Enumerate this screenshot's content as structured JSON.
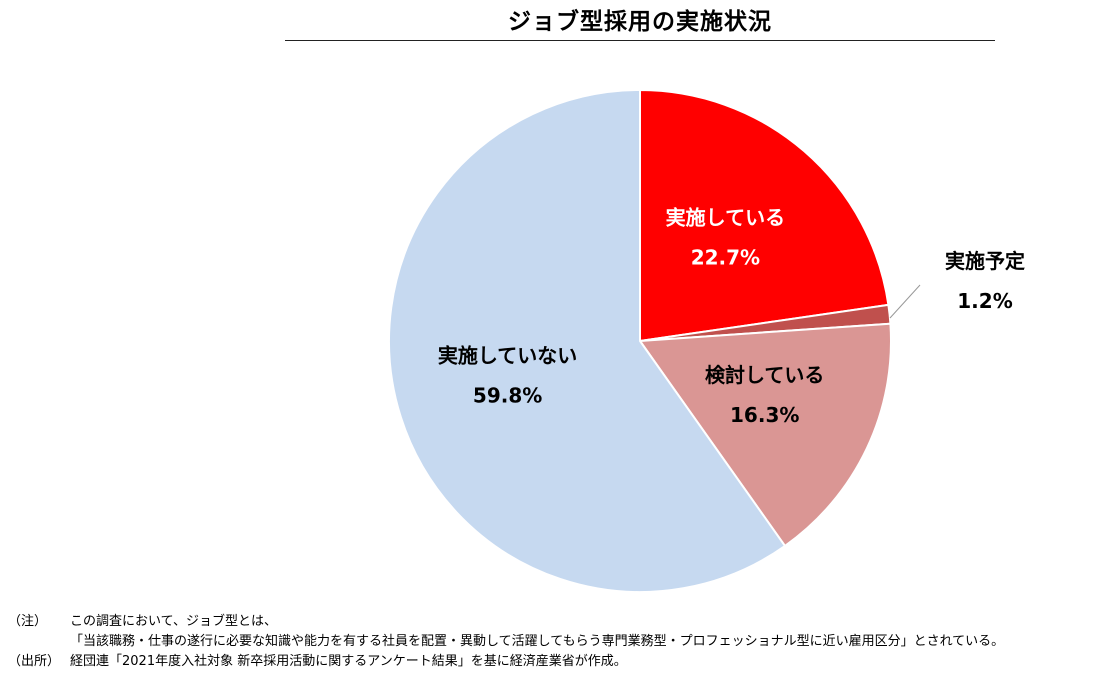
{
  "chart_data": {
    "type": "pie",
    "title": "ジョブ型採用の実施状況",
    "slices": [
      {
        "label": "実施している",
        "value": 22.7,
        "value_label": "22.7%",
        "color": "#ff0000"
      },
      {
        "label": "実施予定",
        "value": 1.2,
        "value_label": "1.2%",
        "color": "#c0504d"
      },
      {
        "label": "検討している",
        "value": 16.3,
        "value_label": "16.3%",
        "color": "#da9694"
      },
      {
        "label": "実施していない",
        "value": 59.8,
        "value_label": "59.8%",
        "color": "#c6d9f0"
      }
    ],
    "start": "12 o'clock",
    "direction": "clockwise"
  },
  "notes": {
    "note_tag": "（注）",
    "note_line1": "この調査において、ジョブ型とは、",
    "note_line2": "「当該職務・仕事の遂行に必要な知識や能力を有する社員を配置・異動して活躍してもらう専門業務型・プロフェッショナル型に近い雇用区分」とされている。",
    "source_tag": "（出所）",
    "source_text": "経団連「2021年度入社対象 新卒採用活動に関するアンケート結果」を基に経済産業省が作成。"
  }
}
